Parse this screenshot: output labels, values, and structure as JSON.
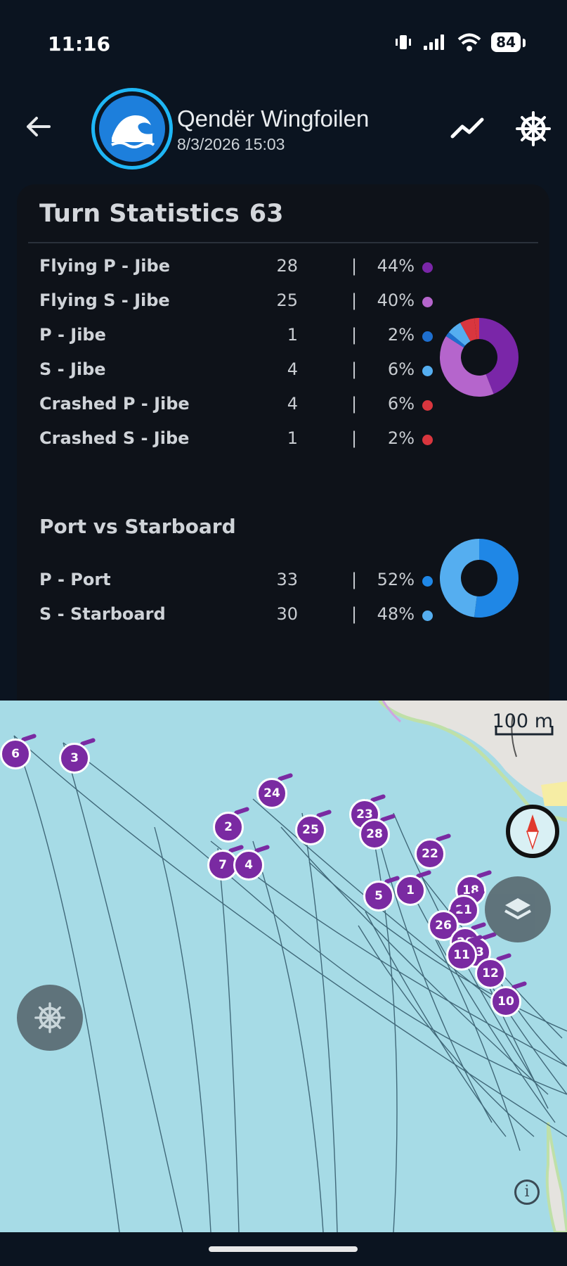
{
  "status_bar": {
    "time": "11:16",
    "battery": "84"
  },
  "header": {
    "title": "Qendër Wingfoilen",
    "subtitle": "8/3/2026 15:03"
  },
  "turn_stats": {
    "title": "Turn Statistics",
    "total": "63",
    "rows": [
      {
        "label": "Flying P - Jibe",
        "count": "28",
        "sep": "|",
        "pct": "44%",
        "color": "#7a26a8"
      },
      {
        "label": "Flying S - Jibe",
        "count": "25",
        "sep": "|",
        "pct": "40%",
        "color": "#b565cc"
      },
      {
        "label": "P - Jibe",
        "count": "1",
        "sep": "|",
        "pct": "2%",
        "color": "#1e6fcf"
      },
      {
        "label": "S - Jibe",
        "count": "4",
        "sep": "|",
        "pct": "6%",
        "color": "#55aef0"
      },
      {
        "label": "Crashed P - Jibe",
        "count": "4",
        "sep": "|",
        "pct": "6%",
        "color": "#d9363e"
      },
      {
        "label": "Crashed S - Jibe",
        "count": "1",
        "sep": "|",
        "pct": "2%",
        "color": "#d9363e"
      }
    ]
  },
  "port_starboard": {
    "title": "Port vs Starboard",
    "rows": [
      {
        "label": "P - Port",
        "count": "33",
        "sep": "|",
        "pct": "52%",
        "color": "#1f87e6"
      },
      {
        "label": "S - Starboard",
        "count": "30",
        "sep": "|",
        "pct": "48%",
        "color": "#55aef0"
      }
    ]
  },
  "map": {
    "scale_label": "100 m",
    "info_label": "i",
    "markers": [
      "6",
      "3",
      "24",
      "2",
      "25",
      "23",
      "28",
      "7",
      "4",
      "22",
      "5",
      "1",
      "18",
      "21",
      "26",
      "20",
      "13",
      "12",
      "10",
      "11"
    ]
  },
  "colors": {
    "map_water": "#a6dbe6",
    "track": "#2f5566",
    "marker": "#7a2aa2"
  }
}
